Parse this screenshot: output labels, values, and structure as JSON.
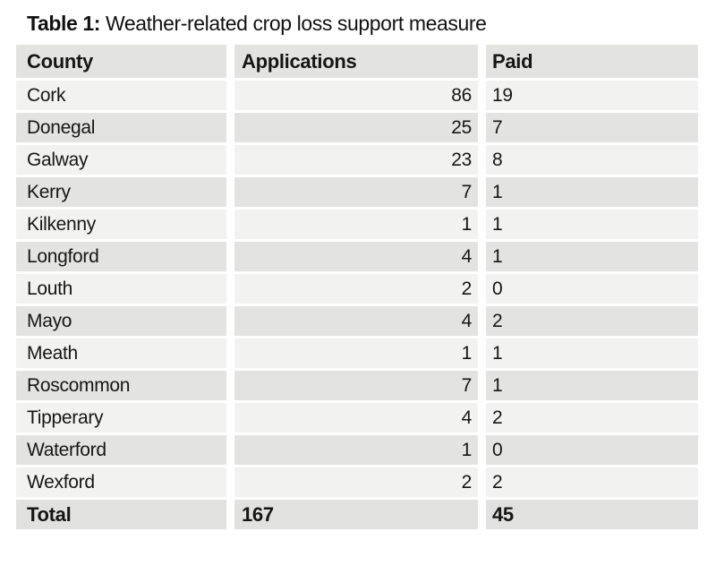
{
  "title": {
    "prefix": "Table 1:",
    "text": " Weather-related crop loss support measure"
  },
  "table": {
    "columns": [
      "County",
      "Applications",
      "Paid"
    ],
    "rows": [
      {
        "county": "Cork",
        "applications": "86",
        "paid": "19"
      },
      {
        "county": "Donegal",
        "applications": "25",
        "paid": "7"
      },
      {
        "county": "Galway",
        "applications": "23",
        "paid": "8"
      },
      {
        "county": "Kerry",
        "applications": "7",
        "paid": "1"
      },
      {
        "county": "Kilkenny",
        "applications": "1",
        "paid": "1"
      },
      {
        "county": "Longford",
        "applications": "4",
        "paid": "1"
      },
      {
        "county": "Louth",
        "applications": "2",
        "paid": "0"
      },
      {
        "county": "Mayo",
        "applications": "4",
        "paid": "2"
      },
      {
        "county": "Meath",
        "applications": "1",
        "paid": "1"
      },
      {
        "county": "Roscommon",
        "applications": "7",
        "paid": "1"
      },
      {
        "county": "Tipperary",
        "applications": "4",
        "paid": "2"
      },
      {
        "county": "Waterford",
        "applications": "1",
        "paid": "0"
      },
      {
        "county": "Wexford",
        "applications": "2",
        "paid": "2"
      }
    ],
    "total": {
      "label": "Total",
      "applications": "167",
      "paid": "45"
    }
  },
  "colors": {
    "row_dark": "#e3e3e1",
    "row_light": "#f2f2f0",
    "text": "#161616",
    "background": "#ffffff"
  }
}
